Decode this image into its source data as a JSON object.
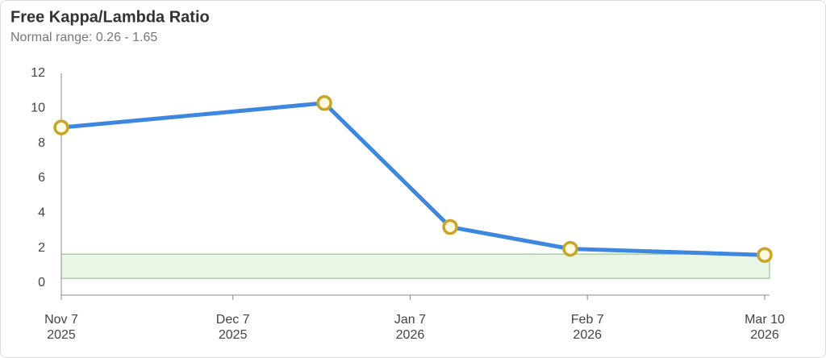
{
  "chart_data": {
    "type": "line",
    "title": "Free Kappa/Lambda Ratio",
    "subtitle": "Normal range: 0.26 - 1.65",
    "reference_band": [
      0.26,
      1.65
    ],
    "band_color": "#e9f6e5",
    "band_stroke": "#7fbf7c",
    "x": [
      "2025-11-07",
      "2025-12-23",
      "2026-01-14",
      "2026-02-04",
      "2026-03-10"
    ],
    "series": [
      {
        "name": "Free Kappa/Lambda Ratio",
        "color": "#3d87e0",
        "values": [
          8.9,
          10.3,
          3.2,
          1.95,
          1.6
        ]
      }
    ],
    "marker_fill": "#fffbe0",
    "marker_stroke": "#c8a526",
    "xlim": [
      "2025-11-07",
      "2026-03-10"
    ],
    "xticks": [
      {
        "value": "2025-11-07",
        "label": "Nov 7",
        "sublabel": "2025"
      },
      {
        "value": "2025-12-07",
        "label": "Dec 7",
        "sublabel": "2025"
      },
      {
        "value": "2026-01-07",
        "label": "Jan 7",
        "sublabel": "2026"
      },
      {
        "value": "2026-02-07",
        "label": "Feb 7",
        "sublabel": "2026"
      },
      {
        "value": "2026-03-10",
        "label": "Mar 10",
        "sublabel": "2026"
      }
    ],
    "ylim": [
      -0.7,
      12
    ],
    "yticks": [
      0,
      2,
      4,
      6,
      8,
      10,
      12
    ],
    "grid": false
  }
}
